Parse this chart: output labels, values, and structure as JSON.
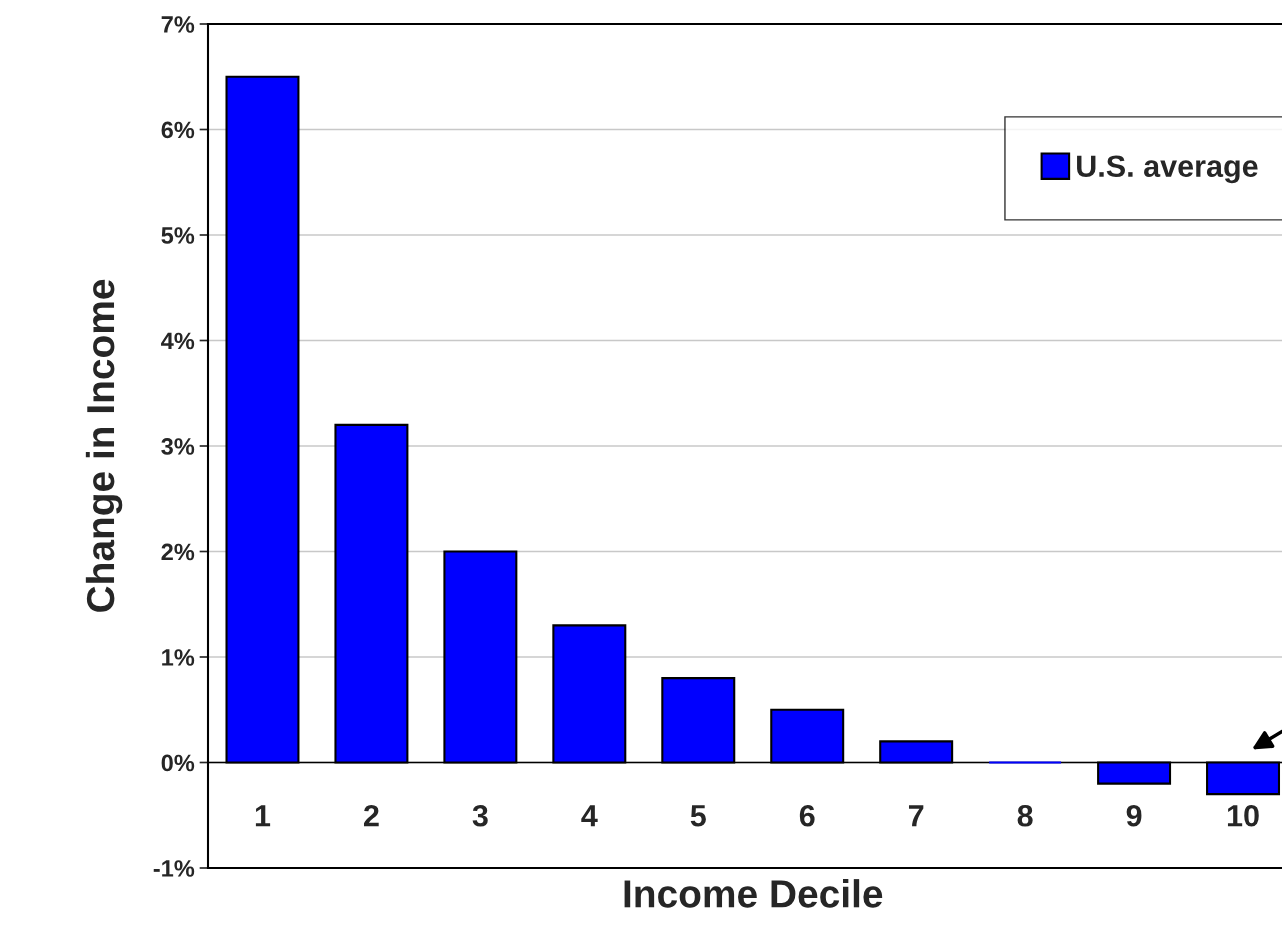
{
  "chart_data": {
    "type": "bar",
    "xlabel": "Income Decile",
    "ylabel": "Change in Income",
    "categories": [
      "1",
      "2",
      "3",
      "4",
      "5",
      "6",
      "7",
      "8",
      "9",
      "10"
    ],
    "series": [
      {
        "name": "U.S. average",
        "color": "#0000ff",
        "values": [
          6.5,
          3.2,
          2.0,
          1.3,
          0.8,
          0.5,
          0.2,
          0,
          -0.2,
          -0.3
        ]
      }
    ],
    "ylim": [
      -1,
      7
    ],
    "yticks": [
      {
        "value": -1,
        "label": "-1%"
      },
      {
        "value": 0,
        "label": "0%"
      },
      {
        "value": 1,
        "label": "1%"
      },
      {
        "value": 2,
        "label": "2%"
      },
      {
        "value": 3,
        "label": "3%"
      },
      {
        "value": 4,
        "label": "4%"
      },
      {
        "value": 5,
        "label": "5%"
      },
      {
        "value": 6,
        "label": "6%"
      },
      {
        "value": 7,
        "label": "7%"
      }
    ],
    "grid": "y",
    "legend": "top right"
  }
}
